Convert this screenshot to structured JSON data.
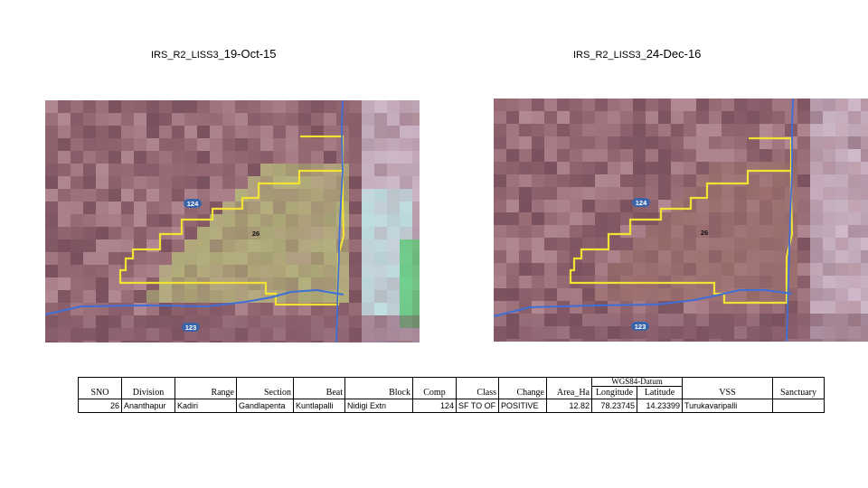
{
  "images": [
    {
      "title_prefix": "IRS_R2_LISS3_",
      "title_date": "19-Oct-15",
      "labels": {
        "compartment_a": "124",
        "compartment_b": "26",
        "compartment_c": "123"
      },
      "colors": {
        "boundary": "#f2e234",
        "river": "#3f6fd6",
        "vegetation": "#b5b87a"
      }
    },
    {
      "title_prefix": "IRS_R2_LISS3_",
      "title_date": "24-Dec-16",
      "labels": {
        "compartment_a": "124",
        "compartment_b": "26",
        "compartment_c": "123"
      },
      "colors": {
        "boundary": "#f2e234",
        "river": "#3f6fd6",
        "vegetation": "#9c6f6c"
      }
    }
  ],
  "table": {
    "datum_header": "WGS84-Datum",
    "headers": {
      "sno": "SNO",
      "division": "Division",
      "range": "Range",
      "section": "Section",
      "beat": "Beat",
      "block": "Block",
      "comp": "Comp",
      "class": "Class",
      "change": "Change",
      "area": "Area_Ha",
      "longitude": "Longitude",
      "latitude": "Latitude",
      "vss": "VSS",
      "sanctuary": "Sanctuary"
    },
    "rows": [
      {
        "sno": "26",
        "division": "Ananthapur",
        "range": "Kadiri",
        "section": "Gandlapenta",
        "beat": "Kuntlapalli",
        "block": "Nidigi Extn",
        "comp": "124",
        "class": "SF TO OF",
        "change": "POSITIVE",
        "area": "12.82",
        "longitude": "78.23745",
        "latitude": "14.23399",
        "vss": "Turukavaripalli",
        "sanctuary": ""
      }
    ]
  }
}
